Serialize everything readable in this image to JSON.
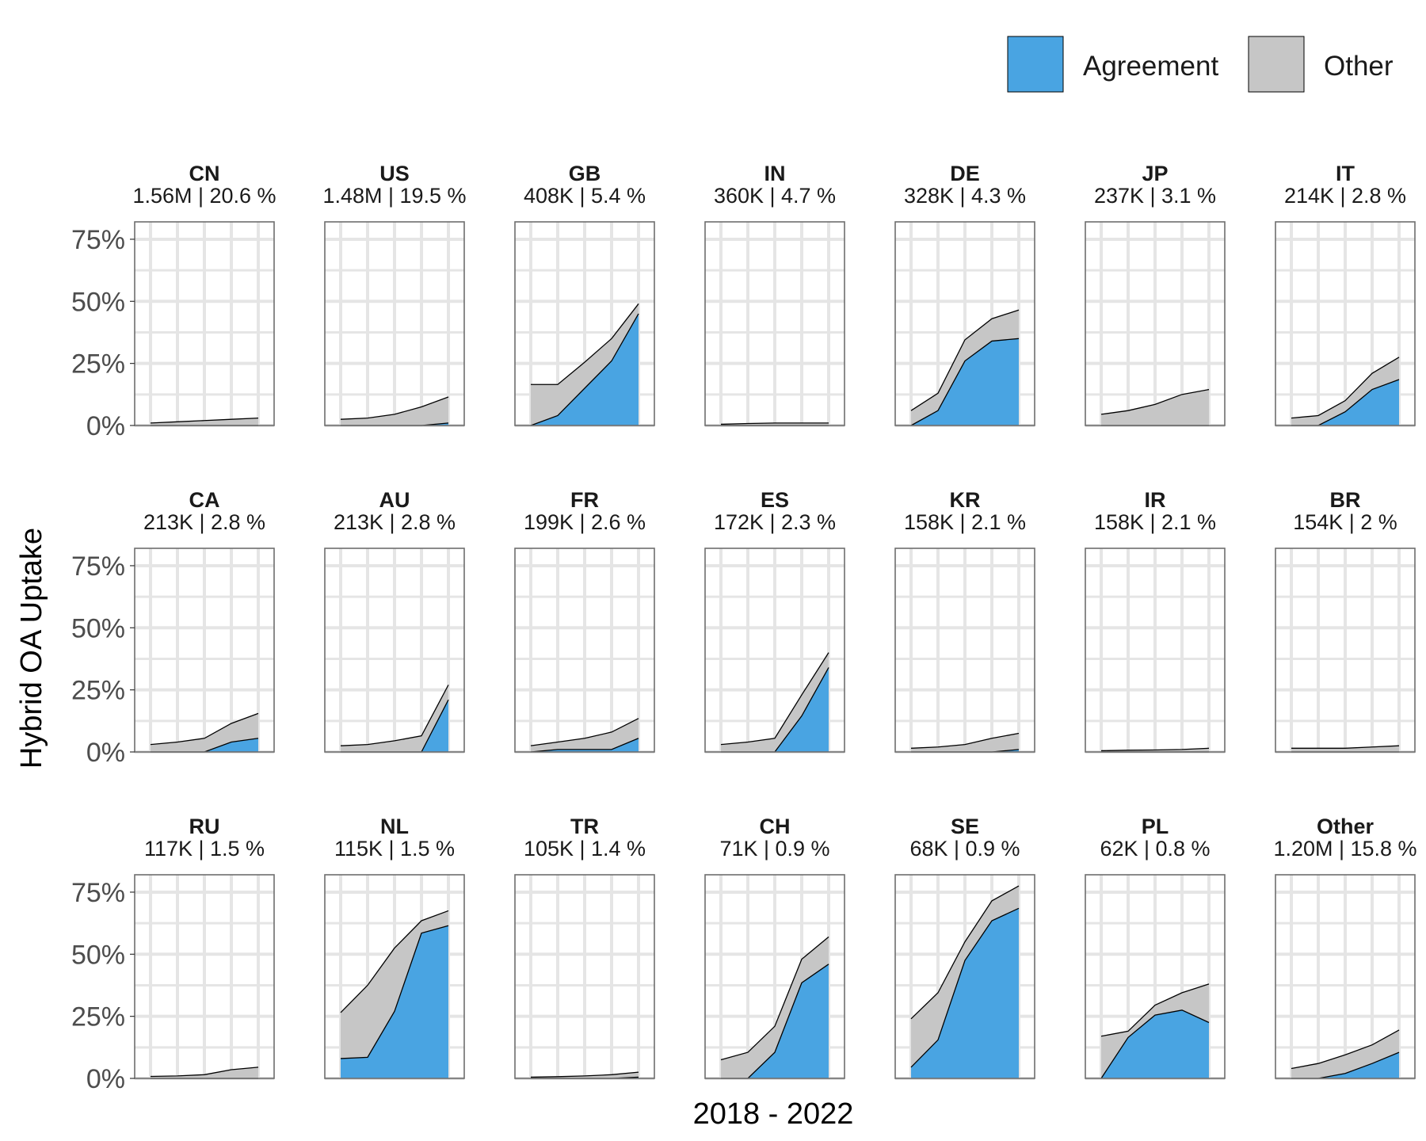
{
  "colors": {
    "agreement": "#49A4E2",
    "other": "#C6C6C6",
    "grid": "#E5E5E5",
    "panel_border": "#6E6E6E",
    "tick_text": "#4D4D4D"
  },
  "chart_data": {
    "type": "area",
    "title": "",
    "xlabel": "2018 - 2022",
    "ylabel": "Hybrid OA Uptake",
    "x": [
      2018,
      2019,
      2020,
      2021,
      2022
    ],
    "ylim": [
      0,
      0.82
    ],
    "yticks": [
      0,
      0.25,
      0.5,
      0.75
    ],
    "ytick_labels": [
      "0%",
      "25%",
      "50%",
      "75%"
    ],
    "stacked": true,
    "grid": true,
    "legend_position": "top-right",
    "legend": [
      {
        "key": "agreement",
        "label": "Agreement",
        "color": "#49A4E2"
      },
      {
        "key": "other",
        "label": "Other",
        "color": "#C6C6C6"
      }
    ],
    "facets": [
      {
        "country": "CN",
        "subtitle": "1.56M | 20.6 %",
        "agreement": [
          0,
          0,
          0,
          0,
          0
        ],
        "total": [
          0.01,
          0.015,
          0.02,
          0.025,
          0.03
        ]
      },
      {
        "country": "US",
        "subtitle": "1.48M | 19.5 %",
        "agreement": [
          0,
          0,
          0,
          0,
          0.01
        ],
        "total": [
          0.025,
          0.03,
          0.045,
          0.075,
          0.115
        ]
      },
      {
        "country": "GB",
        "subtitle": "408K | 5.4 %",
        "agreement": [
          0,
          0.04,
          0.15,
          0.26,
          0.45
        ],
        "total": [
          0.165,
          0.165,
          0.255,
          0.35,
          0.49
        ]
      },
      {
        "country": "IN",
        "subtitle": "360K | 4.7 %",
        "agreement": [
          0,
          0,
          0,
          0,
          0
        ],
        "total": [
          0.005,
          0.008,
          0.01,
          0.01,
          0.01
        ]
      },
      {
        "country": "DE",
        "subtitle": "328K | 4.3 %",
        "agreement": [
          0,
          0.06,
          0.26,
          0.34,
          0.35
        ],
        "total": [
          0.06,
          0.13,
          0.345,
          0.43,
          0.465
        ]
      },
      {
        "country": "JP",
        "subtitle": "237K | 3.1 %",
        "agreement": [
          0,
          0,
          0,
          0,
          0
        ],
        "total": [
          0.045,
          0.06,
          0.085,
          0.125,
          0.145
        ]
      },
      {
        "country": "IT",
        "subtitle": "214K | 2.8 %",
        "agreement": [
          0,
          0,
          0.055,
          0.145,
          0.185
        ],
        "total": [
          0.03,
          0.04,
          0.1,
          0.21,
          0.275
        ]
      },
      {
        "country": "CA",
        "subtitle": "213K | 2.8 %",
        "agreement": [
          0,
          0,
          0,
          0.04,
          0.055
        ],
        "total": [
          0.03,
          0.04,
          0.055,
          0.115,
          0.155
        ]
      },
      {
        "country": "AU",
        "subtitle": "213K | 2.8 %",
        "agreement": [
          0,
          0,
          0,
          0,
          0.21
        ],
        "total": [
          0.025,
          0.03,
          0.045,
          0.065,
          0.27
        ]
      },
      {
        "country": "FR",
        "subtitle": "199K | 2.6 %",
        "agreement": [
          0,
          0.01,
          0.01,
          0.01,
          0.055
        ],
        "total": [
          0.025,
          0.04,
          0.055,
          0.08,
          0.135
        ]
      },
      {
        "country": "ES",
        "subtitle": "172K | 2.3 %",
        "agreement": [
          0,
          0,
          0,
          0.145,
          0.34
        ],
        "total": [
          0.03,
          0.04,
          0.055,
          0.23,
          0.4
        ]
      },
      {
        "country": "KR",
        "subtitle": "158K | 2.1 %",
        "agreement": [
          0,
          0,
          0,
          0,
          0.01
        ],
        "total": [
          0.015,
          0.02,
          0.03,
          0.055,
          0.075
        ]
      },
      {
        "country": "IR",
        "subtitle": "158K | 2.1 %",
        "agreement": [
          0,
          0,
          0,
          0,
          0
        ],
        "total": [
          0.005,
          0.007,
          0.008,
          0.01,
          0.015
        ]
      },
      {
        "country": "BR",
        "subtitle": "154K | 2 %",
        "agreement": [
          0,
          0,
          0,
          0,
          0
        ],
        "total": [
          0.015,
          0.015,
          0.015,
          0.02,
          0.025
        ]
      },
      {
        "country": "RU",
        "subtitle": "117K | 1.5 %",
        "agreement": [
          0,
          0,
          0,
          0,
          0
        ],
        "total": [
          0.008,
          0.01,
          0.015,
          0.035,
          0.045
        ]
      },
      {
        "country": "NL",
        "subtitle": "115K | 1.5 %",
        "agreement": [
          0.08,
          0.085,
          0.27,
          0.585,
          0.615
        ],
        "total": [
          0.265,
          0.375,
          0.525,
          0.635,
          0.675
        ]
      },
      {
        "country": "TR",
        "subtitle": "105K | 1.4 %",
        "agreement": [
          0,
          0,
          0,
          0,
          0.005
        ],
        "total": [
          0.005,
          0.007,
          0.01,
          0.015,
          0.025
        ]
      },
      {
        "country": "CH",
        "subtitle": "71K | 0.9 %",
        "agreement": [
          0,
          0,
          0.105,
          0.385,
          0.46
        ],
        "total": [
          0.075,
          0.105,
          0.21,
          0.48,
          0.57
        ]
      },
      {
        "country": "SE",
        "subtitle": "68K | 0.9 %",
        "agreement": [
          0.045,
          0.155,
          0.475,
          0.635,
          0.685
        ],
        "total": [
          0.24,
          0.345,
          0.55,
          0.715,
          0.775
        ]
      },
      {
        "country": "PL",
        "subtitle": "62K | 0.8 %",
        "agreement": [
          0,
          0.165,
          0.255,
          0.275,
          0.225
        ],
        "total": [
          0.17,
          0.19,
          0.295,
          0.345,
          0.38
        ]
      },
      {
        "country": "Other",
        "subtitle": "1.20M | 15.8 %",
        "agreement": [
          0,
          0,
          0.02,
          0.06,
          0.105
        ],
        "total": [
          0.04,
          0.06,
          0.095,
          0.135,
          0.195
        ]
      }
    ]
  }
}
